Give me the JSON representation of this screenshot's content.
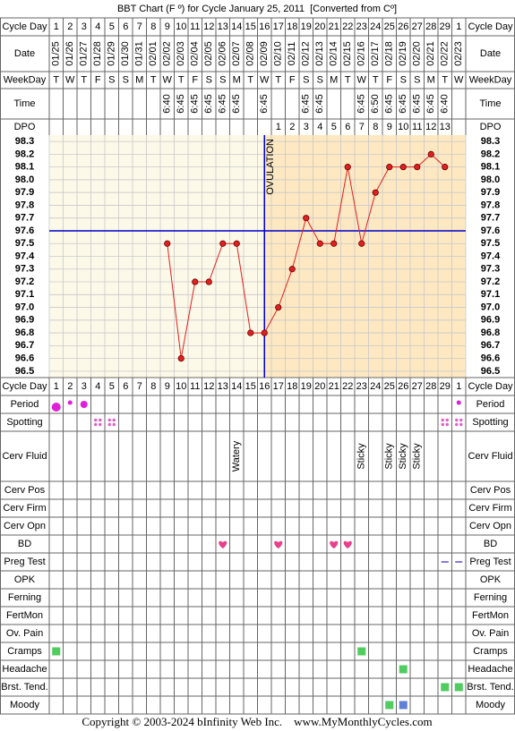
{
  "chart_data": {
    "type": "line",
    "title": "BBT Chart (F º) for Cycle January 25, 2011  [Converted from Cº]",
    "labels": {
      "cycle_day": "Cycle Day",
      "date": "Date",
      "weekday": "WeekDay",
      "time": "Time",
      "dpo": "DPO"
    },
    "cycle_days": [
      1,
      2,
      3,
      4,
      5,
      6,
      7,
      8,
      9,
      10,
      11,
      12,
      13,
      14,
      15,
      16,
      17,
      18,
      19,
      20,
      21,
      22,
      23,
      24,
      25,
      26,
      27,
      28,
      29,
      1
    ],
    "dates": [
      "01/25",
      "01/26",
      "01/27",
      "01/28",
      "01/29",
      "01/30",
      "01/31",
      "02/01",
      "02/02",
      "02/03",
      "02/04",
      "02/05",
      "02/06",
      "02/07",
      "02/08",
      "02/09",
      "02/10",
      "02/11",
      "02/12",
      "02/13",
      "02/14",
      "02/15",
      "02/16",
      "02/17",
      "02/18",
      "02/19",
      "02/20",
      "02/21",
      "02/22",
      "02/23"
    ],
    "weekdays": [
      "T",
      "W",
      "T",
      "F",
      "S",
      "S",
      "M",
      "T",
      "W",
      "T",
      "F",
      "S",
      "S",
      "M",
      "T",
      "W",
      "T",
      "F",
      "S",
      "S",
      "M",
      "T",
      "W",
      "T",
      "F",
      "S",
      "S",
      "M",
      "T",
      "W"
    ],
    "times": [
      null,
      null,
      null,
      null,
      null,
      null,
      null,
      null,
      "6:40",
      "6:45",
      "6:45",
      "6:45",
      "6:45",
      "6:45",
      null,
      "6:45",
      null,
      null,
      "6:45",
      "6:45",
      null,
      null,
      "6:45",
      "6:50",
      "6:45",
      "6:45",
      "6:45",
      "6:45",
      "6:40",
      null
    ],
    "dpo": [
      null,
      null,
      null,
      null,
      null,
      null,
      null,
      null,
      null,
      null,
      null,
      null,
      null,
      null,
      null,
      null,
      1,
      2,
      3,
      4,
      5,
      6,
      7,
      8,
      9,
      10,
      11,
      12,
      13,
      null
    ],
    "values": [
      null,
      null,
      null,
      null,
      null,
      null,
      null,
      null,
      97.5,
      96.6,
      97.2,
      97.2,
      97.5,
      97.5,
      96.8,
      96.8,
      97.0,
      97.3,
      97.7,
      97.5,
      97.5,
      98.1,
      97.5,
      97.9,
      98.1,
      98.1,
      98.1,
      98.2,
      98.1,
      null
    ],
    "color": "#e02020",
    "ylim": [
      96.45,
      98.35
    ],
    "yticks": [
      98.3,
      98.2,
      98.1,
      {
        "value": 98.0,
        "label": "98.0"
      },
      97.9,
      97.8,
      97.7,
      97.6,
      97.5,
      97.4,
      97.3,
      97.2,
      97.1,
      {
        "value": 97.0,
        "label": "97.0"
      },
      96.9,
      96.8,
      96.7,
      96.6,
      96.5
    ],
    "grid": true,
    "coverline": {
      "value": 97.6,
      "color": "#0000cc"
    },
    "ovulation": {
      "label": "OVULATION",
      "cycle_day": 16,
      "color": "#0000cc"
    },
    "rows": [
      {
        "label": "Period"
      },
      {
        "label": "Spotting"
      },
      {
        "label": "Cerv Fluid",
        "values": [
          null,
          null,
          null,
          null,
          null,
          null,
          null,
          null,
          null,
          null,
          null,
          null,
          null,
          "Watery",
          null,
          null,
          null,
          null,
          null,
          null,
          null,
          null,
          "Sticky",
          null,
          "Sticky",
          "Sticky",
          "Sticky",
          null,
          null,
          null
        ]
      },
      {
        "label": "Cerv Pos"
      },
      {
        "label": "Cerv Firm"
      },
      {
        "label": "Cerv Opn"
      },
      {
        "label": "BD"
      },
      {
        "label": "Preg Test"
      },
      {
        "label": "OPK"
      },
      {
        "label": "Ferning"
      },
      {
        "label": "FertMon"
      },
      {
        "label": "Ov. Pain"
      },
      {
        "label": "Cramps"
      },
      {
        "label": "Headache"
      },
      {
        "label": "Brst. Tend."
      },
      {
        "label": "Moody"
      }
    ],
    "footer": "Copyright © 2003-2024 bInfinity Web Inc.    www.MyMonthlyCycles.com"
  }
}
